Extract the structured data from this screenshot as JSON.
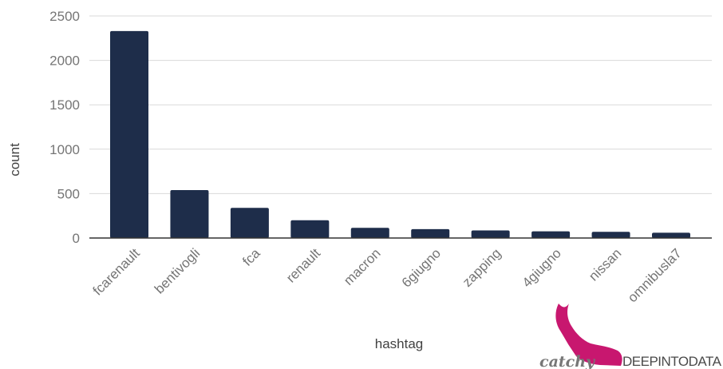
{
  "chart_data": {
    "type": "bar",
    "xlabel": "hashtag",
    "ylabel": "count",
    "ylim": [
      0,
      2500
    ],
    "yticks": [
      0,
      500,
      1000,
      1500,
      2000,
      2500
    ],
    "grid": true,
    "legend": "none",
    "categories": [
      "fcarenault",
      "bentivogli",
      "fca",
      "renault",
      "macron",
      "6giugno",
      "zapping",
      "4giugno",
      "nissan",
      "omnibusla7"
    ],
    "values": [
      2330,
      540,
      340,
      200,
      115,
      100,
      85,
      75,
      70,
      60
    ],
    "bar_color": "#1e2d4a",
    "grid_color": "#d9d9d9",
    "axis_color": "#333333"
  },
  "watermark": {
    "text_1": "catchy",
    "text_2": "DEEPINTODATA",
    "icon": "whale-icon",
    "color_1": "#c8176f",
    "color_2": "#4a4a4a"
  }
}
